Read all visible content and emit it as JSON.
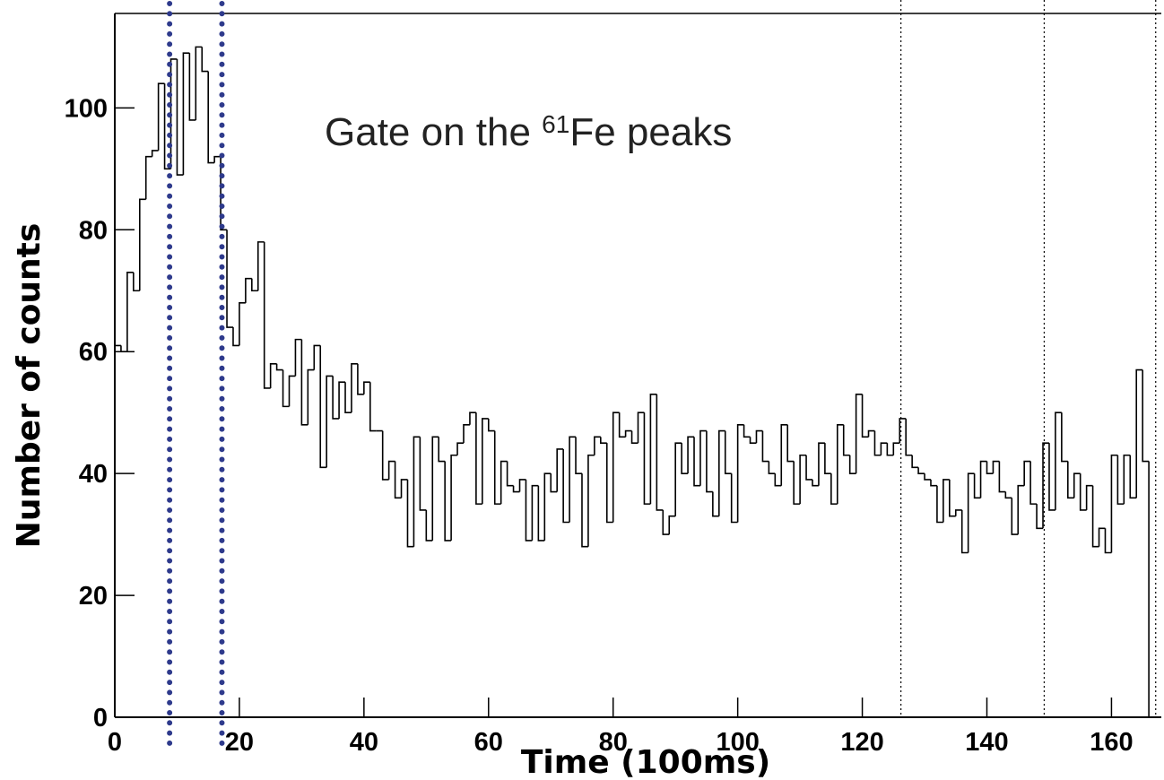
{
  "chart_data": {
    "type": "histogram",
    "annotation": {
      "before": "Gate on the ",
      "superscript": "61",
      "after": "Fe peaks"
    },
    "xlabel": "Time (100ms)",
    "ylabel": "Number of counts",
    "bins": [
      0,
      1,
      2,
      3,
      4,
      5,
      6,
      7,
      8,
      9,
      10,
      11,
      12,
      13,
      14,
      15,
      16,
      17,
      18,
      19,
      20,
      21,
      22,
      23,
      24,
      25,
      26,
      27,
      28,
      29,
      30,
      31,
      32,
      33,
      34,
      35,
      36,
      37,
      38,
      39,
      40,
      41,
      42,
      43,
      44,
      45,
      46,
      47,
      48,
      49,
      50,
      51,
      52,
      53,
      54,
      55,
      56,
      57,
      58,
      59,
      60,
      61,
      62,
      63,
      64,
      65,
      66,
      67,
      68,
      69,
      70,
      71,
      72,
      73,
      74,
      75,
      76,
      77,
      78,
      79,
      80,
      81,
      82,
      83,
      84,
      85,
      86,
      87,
      88,
      89,
      90,
      91,
      92,
      93,
      94,
      95,
      96,
      97,
      98,
      99,
      100,
      101,
      102,
      103,
      104,
      105,
      106,
      107,
      108,
      109,
      110,
      111,
      112,
      113,
      114,
      115,
      116,
      117,
      118,
      119,
      120,
      121,
      122,
      123,
      124,
      125,
      126,
      127,
      128,
      129,
      130,
      131,
      132,
      133,
      134,
      135,
      136,
      137,
      138,
      139,
      140,
      141,
      142,
      143,
      144,
      145,
      146,
      147,
      148,
      149,
      150,
      151,
      152,
      153,
      154,
      155,
      156,
      157,
      158,
      159,
      160,
      161,
      162,
      163,
      164,
      165,
      166,
      167
    ],
    "values": [
      61,
      60,
      73,
      70,
      85,
      92,
      93,
      104,
      90,
      108,
      89,
      109,
      98,
      110,
      106,
      91,
      92,
      80,
      64,
      61,
      68,
      72,
      70,
      78,
      54,
      58,
      57,
      51,
      56,
      62,
      48,
      57,
      61,
      41,
      56,
      49,
      55,
      50,
      58,
      53,
      55,
      47,
      47,
      39,
      42,
      36,
      39,
      28,
      46,
      34,
      29,
      46,
      42,
      29,
      43,
      45,
      48,
      50,
      35,
      49,
      47,
      35,
      42,
      38,
      37,
      39,
      29,
      38,
      29,
      40,
      37,
      44,
      32,
      46,
      40,
      28,
      43,
      46,
      45,
      32,
      50,
      46,
      47,
      45,
      50,
      35,
      53,
      34,
      30,
      33,
      45,
      40,
      46,
      38,
      47,
      37,
      33,
      47,
      40,
      32,
      48,
      46,
      45,
      47,
      42,
      40,
      38,
      48,
      42,
      35,
      43,
      39,
      38,
      45,
      40,
      35,
      48,
      43,
      40,
      53,
      46,
      47,
      43,
      45,
      43,
      45,
      49,
      43,
      41,
      40,
      39,
      38,
      32,
      39,
      33,
      34,
      27,
      40,
      36,
      42,
      40,
      42,
      37,
      36,
      30,
      38,
      42,
      35,
      31,
      45,
      34,
      50,
      42,
      36,
      40,
      34,
      38,
      28,
      31,
      27,
      43,
      35,
      43,
      36,
      57,
      42,
      0
    ],
    "color": "#000000",
    "gate_lines": {
      "color": "#2e3a8c",
      "x": [
        8.8,
        17.2
      ]
    },
    "marker_lines": {
      "color": "#000000",
      "x": [
        126.2,
        149.2,
        167.1
      ]
    },
    "xlim": [
      0,
      168
    ],
    "ylim": [
      0,
      115.5
    ],
    "xticks": [
      0,
      20,
      40,
      60,
      80,
      100,
      120,
      140,
      160
    ],
    "yticks": [
      0,
      20,
      40,
      60,
      80,
      100
    ]
  }
}
